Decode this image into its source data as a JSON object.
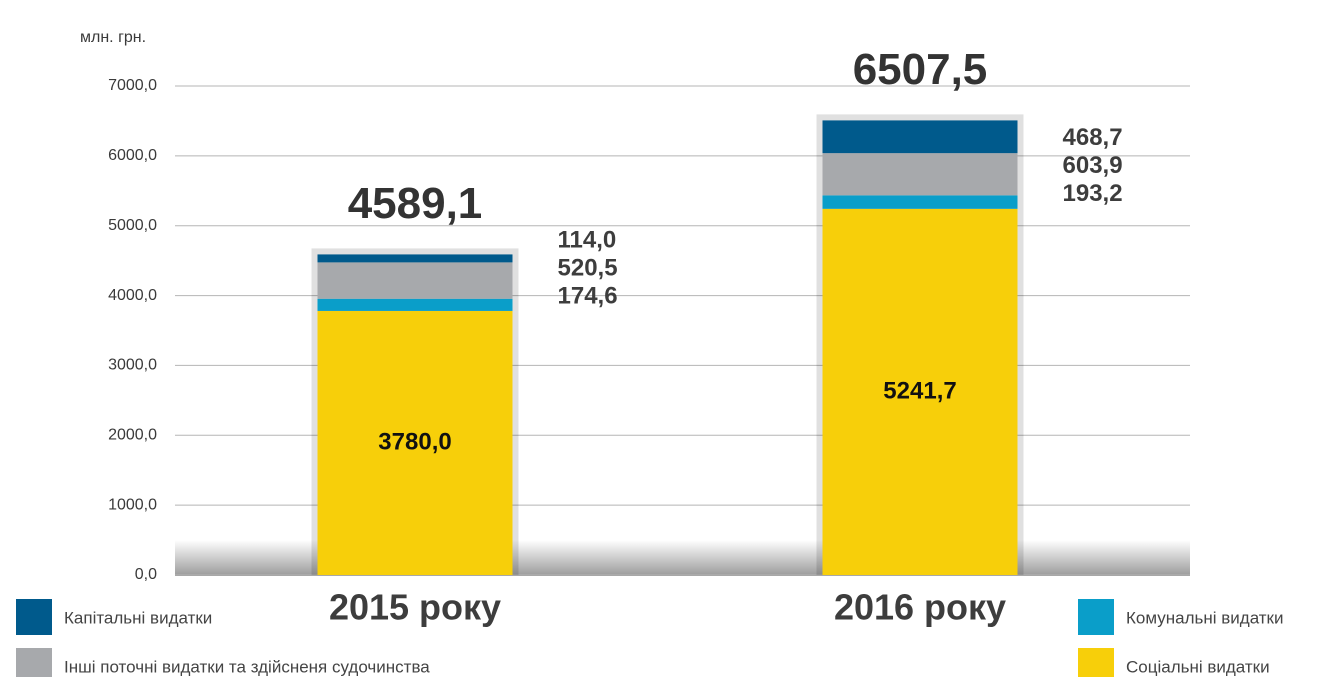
{
  "chart_data": {
    "type": "stacked_bar",
    "unit": "млн. грн.",
    "categories": [
      "2015 року",
      "2016 року"
    ],
    "series": [
      {
        "name": "Соціальні видатки",
        "color": "#f7cf0a",
        "values": [
          3780.0,
          5241.7
        ],
        "value_labels": [
          "3780,0",
          "5241,7"
        ]
      },
      {
        "name": "Комунальні видатки",
        "color": "#0a9ec9",
        "values": [
          174.6,
          193.2
        ],
        "value_labels": [
          "174,6",
          "193,2"
        ]
      },
      {
        "name": "Інші поточні видатки та здійсненя судочинства",
        "color": "#a7a9ac",
        "values": [
          520.5,
          603.9
        ],
        "value_labels": [
          "520,5",
          "603,9"
        ]
      },
      {
        "name": "Капітальні видатки",
        "color": "#005a8c",
        "values": [
          114.0,
          468.7
        ],
        "value_labels": [
          "114,0",
          "468,7"
        ]
      }
    ],
    "totals": [
      4589.1,
      6507.5
    ],
    "total_labels": [
      "4589,1",
      "6507,5"
    ],
    "ylim": [
      0,
      7000
    ],
    "yticks": [
      {
        "value": 0,
        "label": "0,0"
      },
      {
        "value": 1000,
        "label": "1000,0"
      },
      {
        "value": 2000,
        "label": "2000,0"
      },
      {
        "value": 3000,
        "label": "3000,0"
      },
      {
        "value": 4000,
        "label": "4000,0"
      },
      {
        "value": 5000,
        "label": "5000,0"
      },
      {
        "value": 6000,
        "label": "6000,0"
      },
      {
        "value": 7000,
        "label": "7000,0"
      }
    ],
    "grid": true
  }
}
